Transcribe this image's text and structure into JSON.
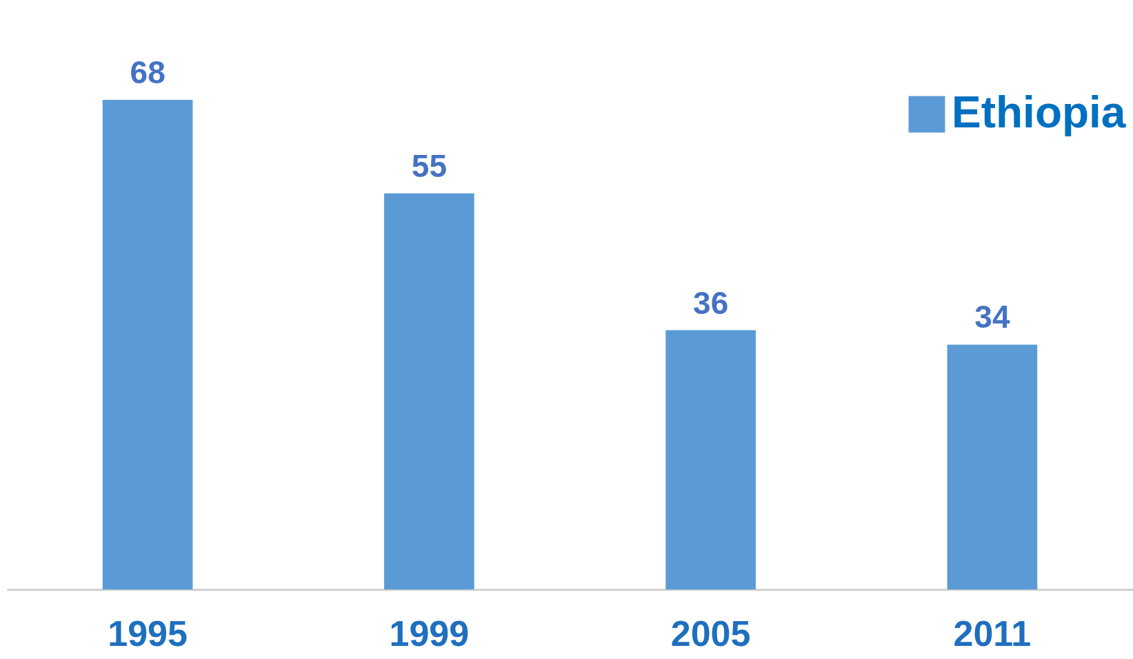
{
  "chart_data": {
    "type": "bar",
    "categories": [
      "1995",
      "1999",
      "2005",
      "2011"
    ],
    "series": [
      {
        "name": "Ethiopia",
        "color": "#5b9bd5",
        "values": [
          68,
          55,
          36,
          34
        ]
      }
    ],
    "data_labels": true,
    "legend": "top right",
    "grid": false
  }
}
